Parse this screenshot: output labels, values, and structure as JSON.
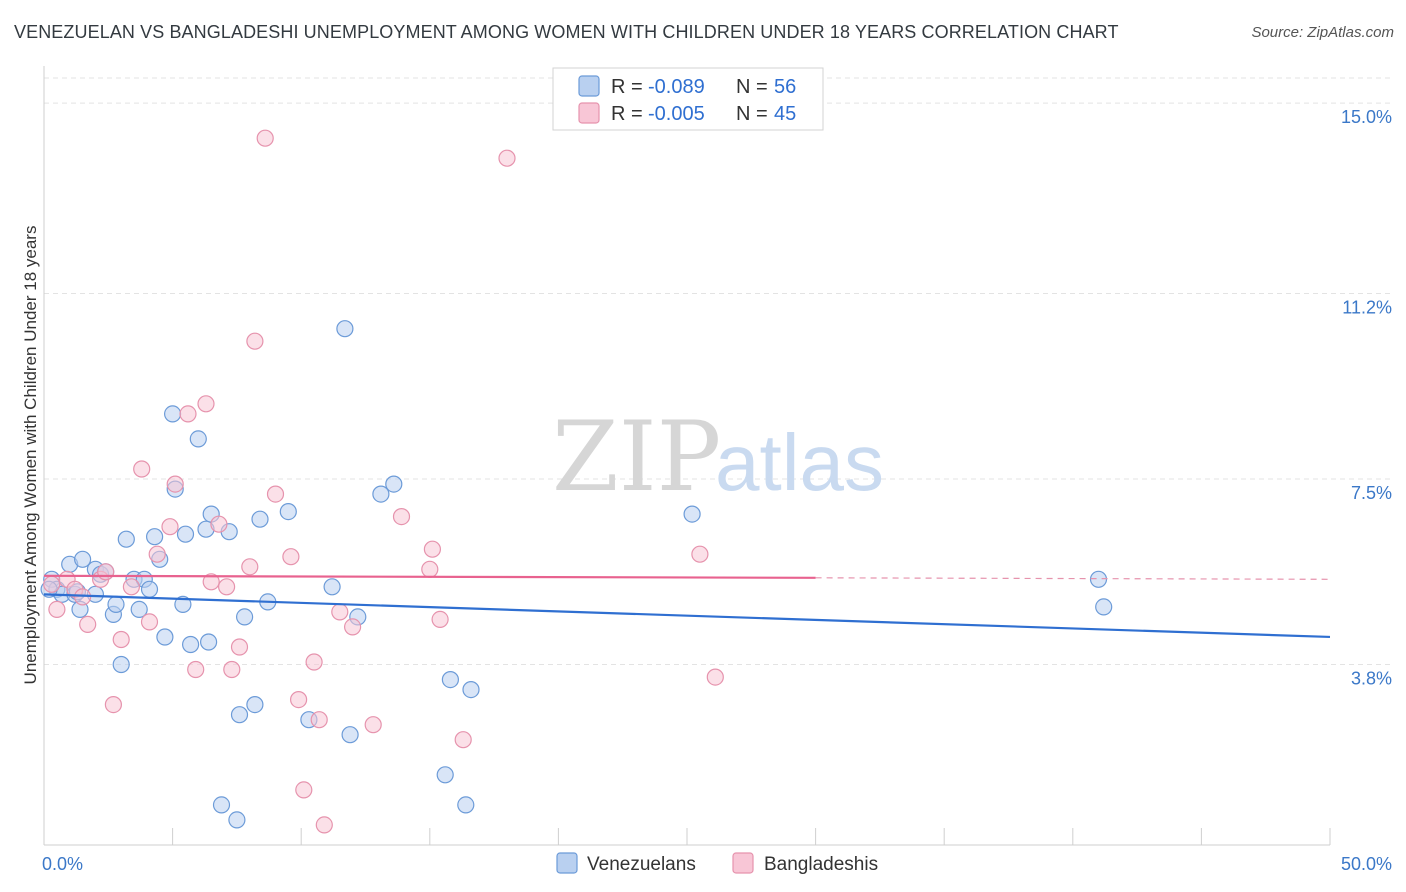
{
  "title": "VENEZUELAN VS BANGLADESHI UNEMPLOYMENT AMONG WOMEN WITH CHILDREN UNDER 18 YEARS CORRELATION CHART",
  "source": "Source: ZipAtlas.com",
  "watermark": {
    "zip": "ZIP",
    "atlas": "atlas"
  },
  "legend": {
    "r_label": "R =",
    "n_label": "N =",
    "rows": [
      {
        "r": "-0.089",
        "n": "56"
      },
      {
        "r": "-0.005",
        "n": "45"
      }
    ]
  },
  "bottom_legend": [
    "Venezuelans",
    "Bangladeshis"
  ],
  "colors": {
    "venezuelans_fill": "#b9d0f0",
    "venezuelans_stroke": "#6c9bd8",
    "venezuelans_line": "#2f6fd1",
    "bangladeshis_fill": "#f8c6d6",
    "bangladeshis_stroke": "#e693ad",
    "bangladeshis_line": "#e8628f",
    "tick_text": "#3b78c8"
  },
  "chart_data": {
    "type": "scatter",
    "ylabel": "Unemployment Among Women with Children Under 18 years",
    "xlabel": "",
    "x_tick_labels": [
      "0.0%",
      "50.0%"
    ],
    "y_ticks": [
      3.8,
      7.5,
      11.2,
      15.0
    ],
    "y_tick_labels": [
      "3.8%",
      "7.5%",
      "11.2%",
      "15.0%"
    ],
    "xlim": [
      0,
      50
    ],
    "ylim": [
      0.2,
      15.5
    ],
    "grid": true,
    "legend_position": "top-center",
    "series": [
      {
        "name": "Venezuelans",
        "r": -0.089,
        "n": 56,
        "trend": {
          "x0": 0,
          "y0": 5.2,
          "x1": 50,
          "y1": 4.35
        },
        "points": [
          [
            0.3,
            5.5
          ],
          [
            0.5,
            5.3
          ],
          [
            0.7,
            5.2
          ],
          [
            1.0,
            5.8
          ],
          [
            1.2,
            5.2
          ],
          [
            1.3,
            5.25
          ],
          [
            1.4,
            4.9
          ],
          [
            1.5,
            5.9
          ],
          [
            2.0,
            5.7
          ],
          [
            2.0,
            5.2
          ],
          [
            2.2,
            5.6
          ],
          [
            2.4,
            5.65
          ],
          [
            2.7,
            4.8
          ],
          [
            2.8,
            5.0
          ],
          [
            3.0,
            3.8
          ],
          [
            3.2,
            6.3
          ],
          [
            3.5,
            5.5
          ],
          [
            3.7,
            4.9
          ],
          [
            3.9,
            5.5
          ],
          [
            4.1,
            5.3
          ],
          [
            4.3,
            6.35
          ],
          [
            4.5,
            5.9
          ],
          [
            4.7,
            4.35
          ],
          [
            5.0,
            8.8
          ],
          [
            5.1,
            7.3
          ],
          [
            5.4,
            5.0
          ],
          [
            5.5,
            6.4
          ],
          [
            5.7,
            4.2
          ],
          [
            6.0,
            8.3
          ],
          [
            6.3,
            6.5
          ],
          [
            6.4,
            4.25
          ],
          [
            6.5,
            6.8
          ],
          [
            6.9,
            1.0
          ],
          [
            7.2,
            6.45
          ],
          [
            7.5,
            0.7
          ],
          [
            7.6,
            2.8
          ],
          [
            7.8,
            4.75
          ],
          [
            8.2,
            3.0
          ],
          [
            8.4,
            6.7
          ],
          [
            8.7,
            5.05
          ],
          [
            9.5,
            6.85
          ],
          [
            10.3,
            2.7
          ],
          [
            11.2,
            5.35
          ],
          [
            11.9,
            2.4
          ],
          [
            12.2,
            4.75
          ],
          [
            11.7,
            10.5
          ],
          [
            13.1,
            7.2
          ],
          [
            13.6,
            7.4
          ],
          [
            15.6,
            1.6
          ],
          [
            15.8,
            3.5
          ],
          [
            16.4,
            1.0
          ],
          [
            16.6,
            3.3
          ],
          [
            25.2,
            6.8
          ],
          [
            41.0,
            5.5
          ],
          [
            41.2,
            4.95
          ],
          [
            0.2,
            5.3
          ]
        ]
      },
      {
        "name": "Bangladeshis",
        "r": -0.005,
        "n": 45,
        "trend": {
          "x0": 0,
          "y0": 5.57,
          "x1": 30,
          "y1": 5.53
        },
        "trend_dashed_to": {
          "x": 50,
          "y": 5.5
        },
        "points": [
          [
            0.3,
            5.4
          ],
          [
            0.5,
            4.9
          ],
          [
            0.9,
            5.5
          ],
          [
            1.2,
            5.3
          ],
          [
            1.5,
            5.15
          ],
          [
            1.7,
            4.6
          ],
          [
            2.2,
            5.5
          ],
          [
            2.4,
            5.65
          ],
          [
            2.7,
            3.0
          ],
          [
            3.0,
            4.3
          ],
          [
            3.4,
            5.35
          ],
          [
            3.8,
            7.7
          ],
          [
            4.1,
            4.65
          ],
          [
            4.4,
            6.0
          ],
          [
            4.9,
            6.55
          ],
          [
            5.1,
            7.4
          ],
          [
            5.6,
            8.8
          ],
          [
            5.9,
            3.7
          ],
          [
            6.3,
            9.0
          ],
          [
            6.5,
            5.45
          ],
          [
            6.8,
            6.6
          ],
          [
            7.1,
            5.35
          ],
          [
            7.3,
            3.7
          ],
          [
            7.6,
            4.15
          ],
          [
            8.0,
            5.75
          ],
          [
            8.2,
            10.25
          ],
          [
            8.6,
            14.3
          ],
          [
            9.0,
            7.2
          ],
          [
            9.6,
            5.95
          ],
          [
            9.9,
            3.1
          ],
          [
            10.1,
            1.3
          ],
          [
            10.5,
            3.85
          ],
          [
            10.7,
            2.7
          ],
          [
            10.9,
            0.6
          ],
          [
            11.5,
            4.85
          ],
          [
            12.0,
            4.55
          ],
          [
            12.8,
            2.6
          ],
          [
            13.9,
            6.75
          ],
          [
            15.0,
            5.7
          ],
          [
            15.1,
            6.1
          ],
          [
            15.4,
            4.7
          ],
          [
            16.3,
            2.3
          ],
          [
            18.0,
            13.9
          ],
          [
            25.5,
            6.0
          ],
          [
            26.1,
            3.55
          ]
        ]
      }
    ]
  }
}
